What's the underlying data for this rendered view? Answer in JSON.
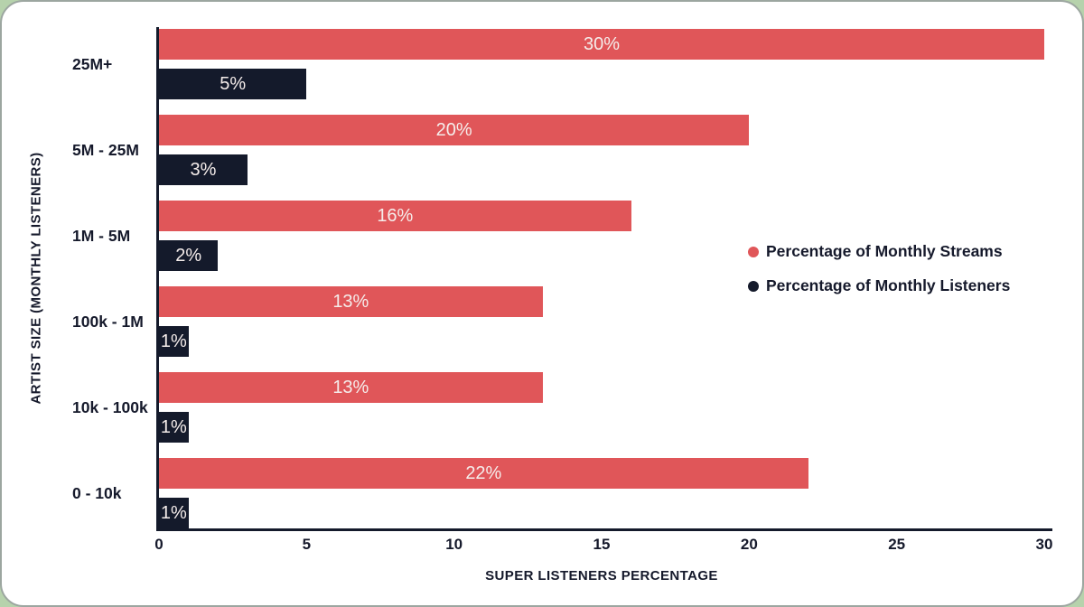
{
  "frame": {
    "page_background": "#b6d2ac",
    "card_background": "#ffffff",
    "card_border_color": "#9ca6a0"
  },
  "chart_data": {
    "type": "bar",
    "orientation": "horizontal",
    "categories": [
      "25M+",
      "5M - 25M",
      "1M - 5M",
      "100k - 1M",
      "10k - 100k",
      "0 - 10k"
    ],
    "series": [
      {
        "name": "Percentage of Monthly Streams",
        "color": "#e05659",
        "values": [
          30,
          20,
          16,
          13,
          13,
          22
        ],
        "labels": [
          "30%",
          "20%",
          "16%",
          "13%",
          "13%",
          "22%"
        ]
      },
      {
        "name": "Percentage of Monthly Listeners",
        "color": "#141a2b",
        "values": [
          5,
          3,
          2,
          1,
          1,
          1
        ],
        "labels": [
          "5%",
          "3%",
          "2%",
          "1%",
          "1%",
          "1%"
        ]
      }
    ],
    "xlabel": "SUPER LISTENERS PERCENTAGE",
    "ylabel": "ARTIST SIZE (MONTHLY LISTENERS)",
    "xticks": [
      0,
      5,
      10,
      15,
      20,
      25,
      30
    ],
    "xlim": [
      0,
      30
    ],
    "grid": false,
    "legend_position": "right-middle",
    "bar_label_color": "#f5edeb",
    "axis_color": "#141a2b",
    "text_color": "#15192b"
  }
}
